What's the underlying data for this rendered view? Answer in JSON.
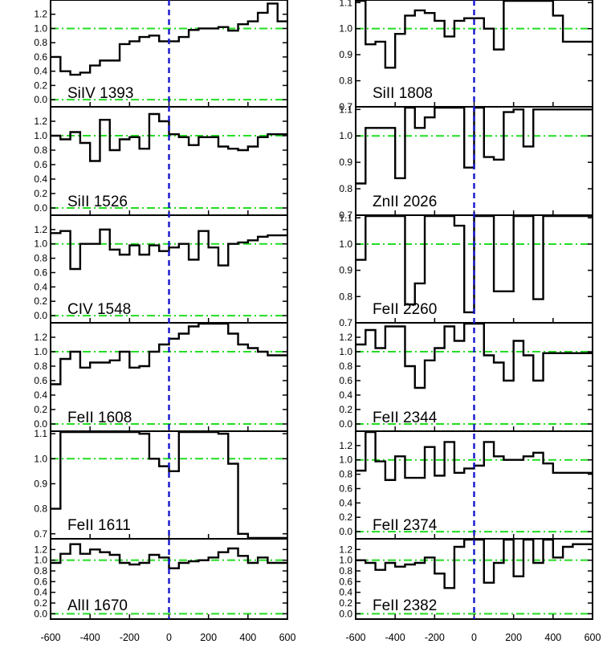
{
  "chart_data": {
    "type": "line",
    "layout": "step-panels-2-columns",
    "x_ticks": [
      -600,
      -400,
      -200,
      0,
      200,
      400,
      600
    ],
    "xlim": [
      -600,
      600
    ],
    "colors": {
      "data": "#000000",
      "reference": "#22dd22",
      "zero_marker": "#1515cc"
    },
    "columns": [
      {
        "x_tick_labels": [
          "-600",
          "-400",
          "-200",
          "0",
          "200",
          "400",
          "600"
        ],
        "panels": [
          {
            "name": "SiIV 1393",
            "ylim": [
              -0.1,
              1.4
            ],
            "y_ticks": [
              0.0,
              0.2,
              0.4,
              0.6,
              0.8,
              1.0,
              1.2
            ],
            "y_tick_labels": [
              "0.0",
              "0.2",
              "0.4",
              "0.6",
              "0.8",
              "1.0",
              "1.2"
            ],
            "ref_levels": [
              1.0,
              0.0
            ],
            "x": [
              -600,
              -550,
              -500,
              -450,
              -400,
              -350,
              -300,
              -250,
              -200,
              -150,
              -100,
              -50,
              0,
              50,
              100,
              150,
              200,
              250,
              300,
              350,
              400,
              450,
              500,
              550,
              600
            ],
            "y": [
              0.6,
              0.4,
              0.35,
              0.38,
              0.48,
              0.55,
              0.55,
              0.78,
              0.82,
              0.88,
              0.9,
              0.82,
              0.82,
              0.88,
              0.98,
              1.0,
              1.0,
              1.02,
              0.97,
              1.06,
              1.1,
              1.22,
              1.35,
              1.1,
              1.1
            ]
          },
          {
            "name": "SiII 1526",
            "ylim": [
              -0.1,
              1.4
            ],
            "y_ticks": [
              0.0,
              0.2,
              0.4,
              0.6,
              0.8,
              1.0,
              1.2
            ],
            "y_tick_labels": [
              "0.0",
              "0.2",
              "0.4",
              "0.6",
              "0.8",
              "1.0",
              "1.2"
            ],
            "ref_levels": [
              1.0,
              0.0
            ],
            "x": [
              -600,
              -550,
              -500,
              -450,
              -400,
              -350,
              -300,
              -250,
              -200,
              -150,
              -100,
              -50,
              0,
              50,
              100,
              150,
              200,
              250,
              300,
              350,
              400,
              450,
              500,
              550,
              600
            ],
            "y": [
              1.0,
              0.95,
              1.05,
              0.9,
              0.65,
              1.22,
              0.8,
              0.95,
              0.98,
              0.82,
              1.3,
              1.2,
              1.02,
              0.98,
              0.87,
              0.98,
              0.98,
              0.85,
              0.82,
              0.8,
              0.85,
              0.98,
              1.02,
              1.02,
              1.02
            ]
          },
          {
            "name": "CIV 1548",
            "ylim": [
              -0.1,
              1.4
            ],
            "y_ticks": [
              0.0,
              0.2,
              0.4,
              0.6,
              0.8,
              1.0,
              1.2
            ],
            "y_tick_labels": [
              "0.0",
              "0.2",
              "0.4",
              "0.6",
              "0.8",
              "1.0",
              "1.2"
            ],
            "ref_levels": [
              1.0,
              0.0
            ],
            "x": [
              -600,
              -550,
              -500,
              -450,
              -400,
              -350,
              -300,
              -250,
              -200,
              -150,
              -100,
              -50,
              0,
              50,
              100,
              150,
              200,
              250,
              300,
              350,
              400,
              450,
              500,
              550,
              600
            ],
            "y": [
              1.15,
              1.18,
              0.65,
              1.0,
              1.0,
              1.2,
              0.92,
              0.85,
              0.98,
              0.85,
              0.98,
              0.9,
              0.95,
              1.0,
              0.78,
              1.18,
              0.95,
              0.7,
              1.0,
              1.02,
              1.05,
              1.1,
              1.12,
              1.12,
              1.12
            ]
          },
          {
            "name": "FeII 1608",
            "ylim": [
              -0.1,
              1.4
            ],
            "y_ticks": [
              0.0,
              0.2,
              0.4,
              0.6,
              0.8,
              1.0,
              1.2
            ],
            "y_tick_labels": [
              "0.0",
              "0.2",
              "0.4",
              "0.6",
              "0.8",
              "1.0",
              "1.2"
            ],
            "ref_levels": [
              1.0,
              0.0
            ],
            "x": [
              -600,
              -550,
              -500,
              -450,
              -400,
              -350,
              -300,
              -250,
              -200,
              -150,
              -100,
              -50,
              0,
              50,
              100,
              150,
              200,
              250,
              300,
              350,
              400,
              450,
              500,
              550,
              600
            ],
            "y": [
              0.55,
              0.9,
              1.0,
              0.78,
              0.85,
              0.85,
              0.88,
              1.0,
              0.78,
              0.8,
              1.0,
              1.1,
              1.18,
              1.25,
              1.35,
              1.4,
              1.4,
              1.4,
              1.25,
              1.1,
              1.05,
              1.0,
              0.95,
              0.95,
              0.95
            ]
          },
          {
            "name": "FeII 1611",
            "ylim": [
              0.68,
              1.11
            ],
            "y_ticks": [
              0.7,
              0.8,
              0.9,
              1.0,
              1.1
            ],
            "y_tick_labels": [
              "0.7",
              "0.8",
              "0.9",
              "1.0",
              "1.1"
            ],
            "ref_levels": [
              1.0
            ],
            "x": [
              -600,
              -550,
              -500,
              -450,
              -400,
              -350,
              -300,
              -250,
              -200,
              -150,
              -100,
              -50,
              0,
              50,
              100,
              150,
              200,
              250,
              300,
              350,
              400,
              450,
              500,
              550,
              600
            ],
            "y": [
              0.8,
              1.15,
              1.15,
              1.15,
              1.15,
              1.15,
              1.15,
              1.15,
              1.15,
              1.1,
              1.0,
              0.97,
              0.95,
              1.15,
              1.15,
              1.15,
              1.15,
              1.1,
              0.98,
              0.7,
              0.68,
              0.68,
              0.68,
              0.68,
              0.68
            ]
          },
          {
            "name": "AlII 1670",
            "ylim": [
              -0.1,
              1.4
            ],
            "y_ticks": [
              0.0,
              0.2,
              0.4,
              0.6,
              0.8,
              1.0,
              1.2
            ],
            "y_tick_labels": [
              "0.0",
              "0.2",
              "0.4",
              "0.6",
              "0.8",
              "1.0",
              "1.2"
            ],
            "ref_levels": [
              1.0,
              0.0
            ],
            "x": [
              -600,
              -550,
              -500,
              -450,
              -400,
              -350,
              -300,
              -250,
              -200,
              -150,
              -100,
              -50,
              0,
              50,
              100,
              150,
              200,
              250,
              300,
              350,
              400,
              450,
              500,
              550,
              600
            ],
            "y": [
              0.95,
              1.12,
              1.3,
              1.12,
              1.2,
              1.15,
              1.1,
              0.95,
              0.92,
              0.95,
              1.1,
              1.05,
              0.85,
              0.95,
              0.98,
              1.0,
              1.05,
              1.15,
              1.22,
              1.08,
              0.95,
              1.05,
              0.95,
              0.95,
              0.95
            ]
          }
        ]
      },
      {
        "x_tick_labels": [
          "-600",
          "-400",
          "-200",
          "0",
          "200",
          "400",
          "600"
        ],
        "panels": [
          {
            "name": "SiII 1808",
            "ylim": [
              0.7,
              1.11
            ],
            "y_ticks": [
              0.7,
              0.8,
              0.9,
              1.0,
              1.1
            ],
            "y_tick_labels": [
              "0.7",
              "0.8",
              "0.9",
              "1.0",
              "1.1"
            ],
            "ref_levels": [
              1.0
            ],
            "x": [
              -600,
              -550,
              -500,
              -450,
              -400,
              -350,
              -300,
              -250,
              -200,
              -150,
              -100,
              -50,
              0,
              50,
              100,
              150,
              200,
              250,
              300,
              350,
              400,
              450,
              500,
              550,
              600
            ],
            "y": [
              1.15,
              0.94,
              0.95,
              0.85,
              0.98,
              1.05,
              1.07,
              1.06,
              1.03,
              0.97,
              1.03,
              1.04,
              1.04,
              1.0,
              0.92,
              1.15,
              1.15,
              1.15,
              1.15,
              1.15,
              1.05,
              0.95,
              0.95,
              0.95,
              0.95
            ]
          },
          {
            "name": "ZnII 2026",
            "ylim": [
              0.7,
              1.11
            ],
            "y_ticks": [
              0.7,
              0.8,
              0.9,
              1.0,
              1.1
            ],
            "y_tick_labels": [
              "0.7",
              "0.8",
              "0.9",
              "1.0",
              "1.1"
            ],
            "ref_levels": [
              1.0
            ],
            "x": [
              -600,
              -550,
              -500,
              -450,
              -400,
              -350,
              -300,
              -250,
              -200,
              -150,
              -100,
              -50,
              0,
              50,
              100,
              150,
              200,
              250,
              300,
              350,
              400,
              450,
              500,
              550,
              600
            ],
            "y": [
              0.82,
              1.03,
              1.03,
              1.03,
              0.84,
              1.15,
              1.03,
              1.07,
              1.15,
              1.15,
              1.15,
              0.88,
              1.15,
              0.92,
              0.91,
              1.09,
              1.1,
              0.96,
              1.1,
              1.1,
              1.1,
              1.1,
              1.1,
              1.1,
              1.1
            ]
          },
          {
            "name": "FeII 2260",
            "ylim": [
              0.7,
              1.11
            ],
            "y_ticks": [
              0.7,
              0.8,
              0.9,
              1.0,
              1.1
            ],
            "y_tick_labels": [
              "0.7",
              "0.8",
              "0.9",
              "1.0",
              "1.1"
            ],
            "ref_levels": [
              1.0
            ],
            "x": [
              -600,
              -550,
              -500,
              -450,
              -400,
              -350,
              -300,
              -250,
              -200,
              -150,
              -100,
              -50,
              0,
              50,
              100,
              150,
              200,
              250,
              300,
              350,
              400,
              450,
              500,
              550,
              600
            ],
            "y": [
              0.94,
              1.15,
              1.15,
              1.15,
              1.15,
              0.77,
              0.85,
              1.15,
              1.15,
              1.15,
              1.07,
              0.74,
              1.15,
              1.15,
              0.82,
              0.82,
              1.15,
              1.15,
              0.79,
              1.15,
              1.15,
              1.15,
              1.15,
              1.15,
              1.15
            ]
          },
          {
            "name": "FeII 2344",
            "ylim": [
              -0.1,
              1.4
            ],
            "y_ticks": [
              0.0,
              0.2,
              0.4,
              0.6,
              0.8,
              1.0,
              1.2
            ],
            "y_tick_labels": [
              "0.0",
              "0.2",
              "0.4",
              "0.6",
              "0.8",
              "1.0",
              "1.2"
            ],
            "ref_levels": [
              1.0,
              0.0
            ],
            "x": [
              -600,
              -550,
              -500,
              -450,
              -400,
              -350,
              -300,
              -250,
              -200,
              -150,
              -100,
              -50,
              0,
              50,
              100,
              150,
              200,
              250,
              300,
              350,
              400,
              450,
              500,
              550,
              600
            ],
            "y": [
              1.1,
              1.3,
              1.05,
              1.35,
              1.35,
              0.8,
              0.5,
              0.88,
              1.05,
              1.35,
              1.15,
              1.4,
              1.4,
              0.95,
              0.85,
              0.6,
              1.15,
              0.95,
              0.6,
              0.98,
              0.98,
              0.98,
              0.98,
              0.98,
              0.98
            ]
          },
          {
            "name": "FeII 2374",
            "ylim": [
              -0.1,
              1.4
            ],
            "y_ticks": [
              0.0,
              0.2,
              0.4,
              0.6,
              0.8,
              1.0,
              1.2
            ],
            "y_tick_labels": [
              "0.0",
              "0.2",
              "0.4",
              "0.6",
              "0.8",
              "1.0",
              "1.2"
            ],
            "ref_levels": [
              1.0,
              0.0
            ],
            "x": [
              -600,
              -550,
              -500,
              -450,
              -400,
              -350,
              -300,
              -250,
              -200,
              -150,
              -100,
              -50,
              0,
              50,
              100,
              150,
              200,
              250,
              300,
              350,
              400,
              450,
              500,
              550,
              600
            ],
            "y": [
              0.85,
              1.4,
              0.98,
              0.72,
              1.05,
              0.75,
              0.75,
              1.18,
              0.78,
              1.25,
              0.82,
              0.88,
              0.92,
              1.25,
              1.05,
              1.0,
              1.0,
              1.05,
              1.1,
              0.95,
              0.82,
              0.82,
              0.82,
              0.82,
              0.82
            ]
          },
          {
            "name": "FeII 2382",
            "ylim": [
              -0.1,
              1.4
            ],
            "y_ticks": [
              0.0,
              0.2,
              0.4,
              0.6,
              0.8,
              1.0,
              1.2
            ],
            "y_tick_labels": [
              "0.0",
              "0.2",
              "0.4",
              "0.6",
              "0.8",
              "1.0",
              "1.2"
            ],
            "ref_levels": [
              1.0,
              0.0
            ],
            "x": [
              -600,
              -550,
              -500,
              -450,
              -400,
              -350,
              -300,
              -250,
              -200,
              -150,
              -100,
              -50,
              0,
              50,
              100,
              150,
              200,
              250,
              300,
              350,
              400,
              450,
              500,
              550,
              600
            ],
            "y": [
              1.0,
              0.95,
              0.82,
              0.95,
              0.88,
              0.92,
              0.95,
              1.05,
              0.75,
              0.48,
              1.25,
              1.4,
              1.4,
              0.58,
              0.95,
              1.4,
              0.7,
              1.4,
              0.95,
              1.4,
              1.05,
              1.25,
              1.3,
              1.3,
              1.3
            ]
          }
        ]
      }
    ]
  }
}
